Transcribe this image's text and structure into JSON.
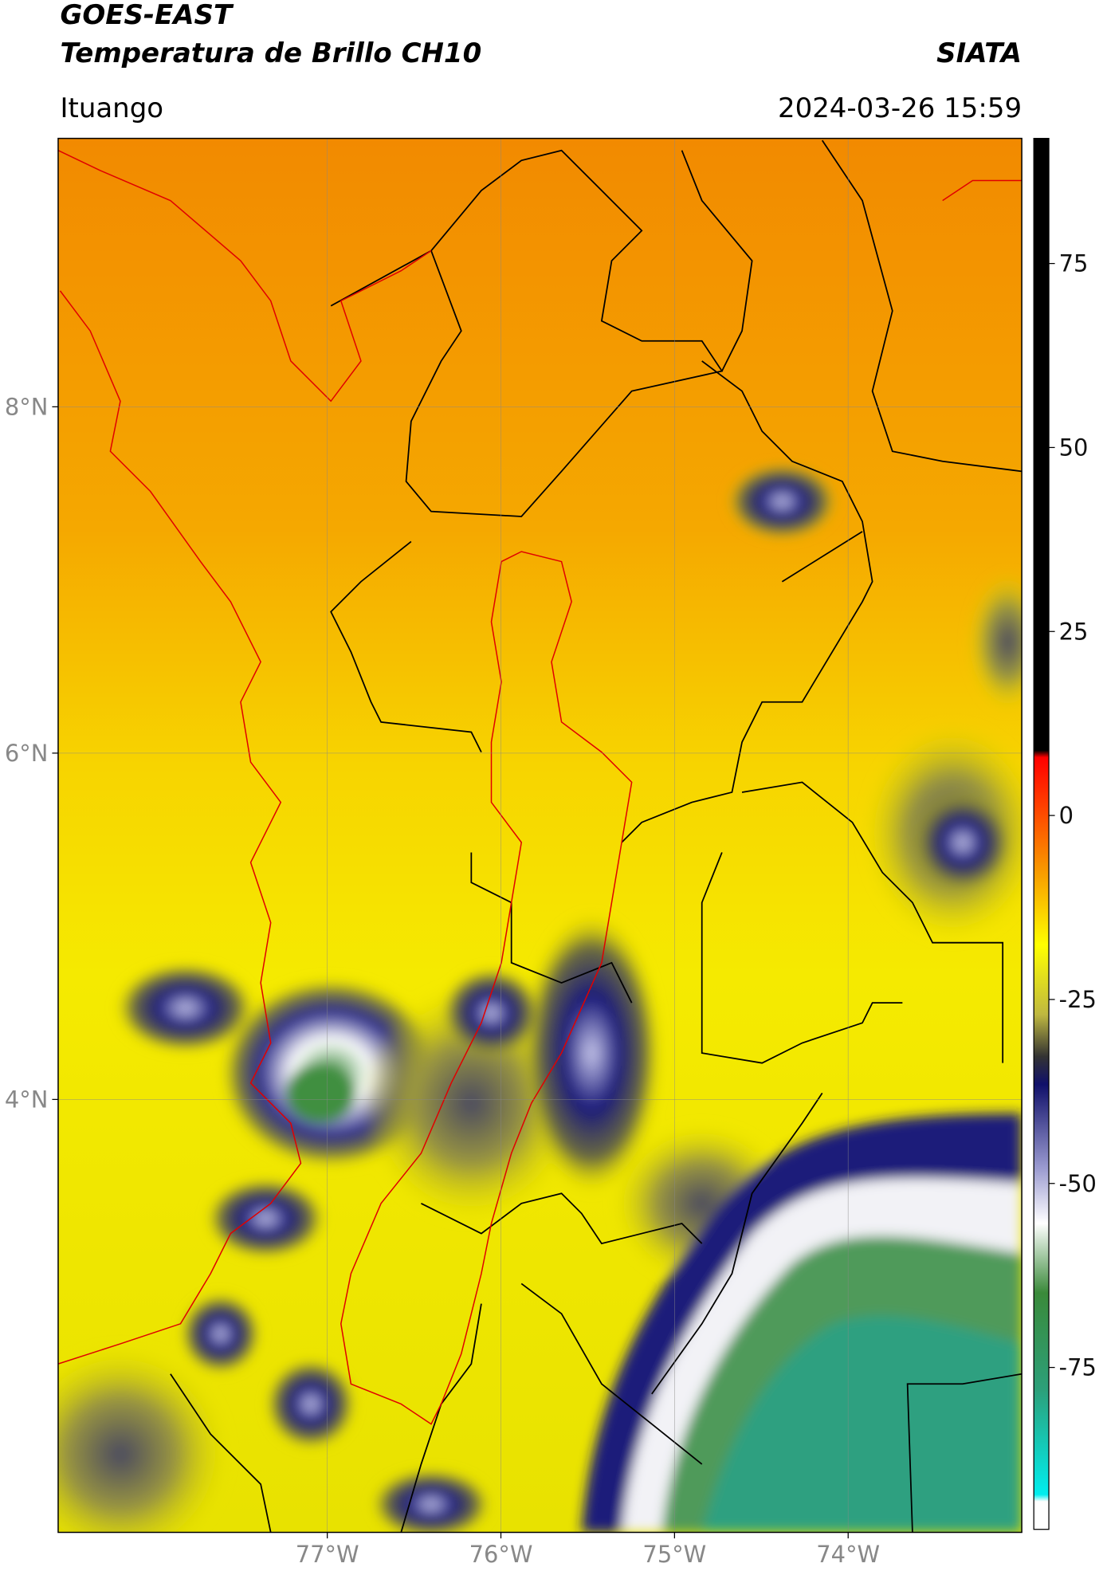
{
  "chart_data": {
    "type": "map",
    "title": "GOES-EAST",
    "subtitle": "Temperatura de Brillo CH10",
    "source": "SIATA",
    "location": "Ituango",
    "date": "2024-03-26 15:59",
    "xlim": [
      -78.55,
      -73.0
    ],
    "ylim": [
      1.5,
      9.55
    ],
    "xticks": [
      {
        "value": -77,
        "label": "77°W"
      },
      {
        "value": -76,
        "label": "76°W"
      },
      {
        "value": -75,
        "label": "75°W"
      },
      {
        "value": -74,
        "label": "74°W"
      }
    ],
    "yticks": [
      {
        "value": 8,
        "label": "8°N"
      },
      {
        "value": 6,
        "label": "6°N"
      },
      {
        "value": 4,
        "label": "4°N"
      }
    ],
    "grid": true,
    "colorbar": {
      "clim": [
        -97,
        92
      ],
      "ticks": [
        75,
        50,
        25,
        0,
        -25,
        -50,
        -75
      ]
    }
  }
}
